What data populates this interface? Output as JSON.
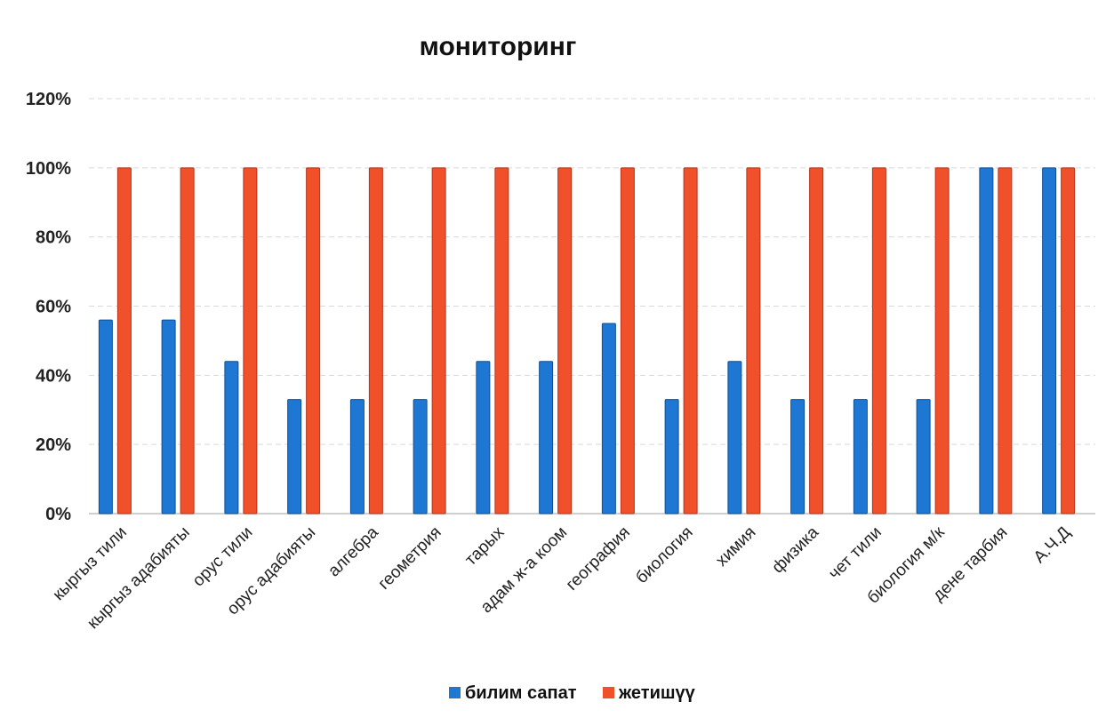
{
  "chart_data": {
    "type": "bar",
    "title": "мониторинг",
    "xlabel": "",
    "ylabel": "",
    "ylim": [
      0,
      120
    ],
    "yticks": [
      "0%",
      "20%",
      "40%",
      "60%",
      "80%",
      "100%",
      "120%"
    ],
    "ytick_values": [
      0,
      20,
      40,
      60,
      80,
      100,
      120
    ],
    "grid": true,
    "legend_position": "bottom",
    "categories": [
      "кыргыз тили",
      "кыргыз адабияты",
      "орус тили",
      "орус адабияты",
      "алгебра",
      "геометрия",
      "тарых",
      "адам ж-а коом",
      "география",
      "биология",
      "химия",
      "физика",
      "чет тили",
      "биология м/к",
      "дене тарбия",
      "А.Ч.Д"
    ],
    "series": [
      {
        "name": "билим сапат",
        "color": "#1f77d4",
        "values": [
          56,
          56,
          44,
          33,
          33,
          33,
          44,
          44,
          55,
          33,
          44,
          33,
          33,
          33,
          100,
          100
        ]
      },
      {
        "name": "жетишүү",
        "color": "#f0502a",
        "values": [
          100,
          100,
          100,
          100,
          100,
          100,
          100,
          100,
          100,
          100,
          100,
          100,
          100,
          100,
          100,
          100
        ]
      }
    ]
  }
}
